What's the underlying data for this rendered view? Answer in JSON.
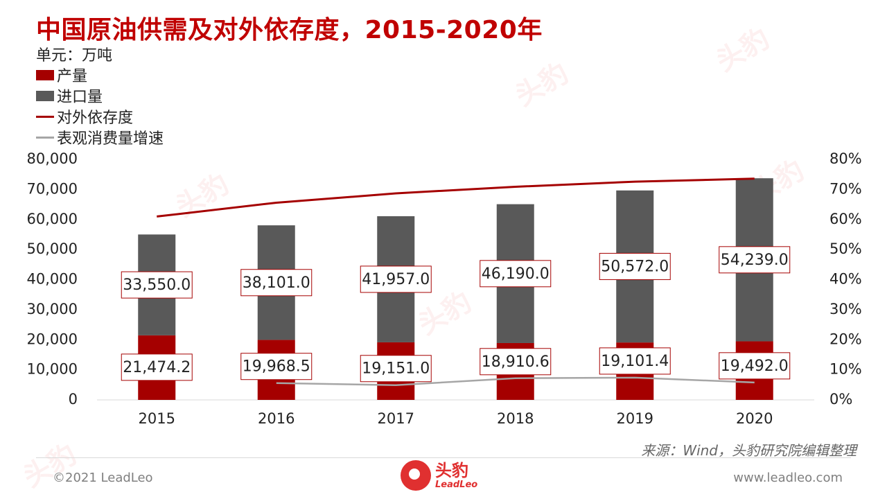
{
  "title": "中国原油供需及对外依存度，2015-2020年",
  "unit": "单元：万吨",
  "legend": [
    {
      "label": "产量",
      "kind": "box",
      "color": "#a50000"
    },
    {
      "label": "进口量",
      "kind": "box",
      "color": "#595959"
    },
    {
      "label": "对外依存度",
      "kind": "line",
      "color": "#a50000"
    },
    {
      "label": "表观消费量增速",
      "kind": "line",
      "color": "#a6a6a6"
    }
  ],
  "source": "来源：Wind，头豹研究院编辑整理",
  "footer": {
    "copyright": "©2021 LeadLeo",
    "website": "www.leadleo.com",
    "logo_cn": "头豹",
    "logo_en": "LeadLeo"
  },
  "colors": {
    "title": "#c00000",
    "production": "#a50000",
    "imports": "#595959",
    "dependency": "#a50000",
    "growth": "#a6a6a6"
  },
  "chart_data": {
    "type": "bar",
    "stacked": true,
    "categories": [
      "2015",
      "2016",
      "2017",
      "2018",
      "2019",
      "2020"
    ],
    "series": [
      {
        "name": "产量",
        "axis": "left",
        "type": "bar",
        "values": [
          21474.2,
          19968.5,
          19151.0,
          18910.6,
          19101.4,
          19492.0
        ],
        "labels": [
          "21,474.2",
          "19,968.5",
          "19,151.0",
          "18,910.6",
          "19,101.4",
          "19,492.0"
        ]
      },
      {
        "name": "进口量",
        "axis": "left",
        "type": "bar",
        "values": [
          33550.0,
          38101.0,
          41957.0,
          46190.0,
          50572.0,
          54239.0
        ],
        "labels": [
          "33,550.0",
          "38,101.0",
          "41,957.0",
          "46,190.0",
          "50,572.0",
          "54,239.0"
        ]
      },
      {
        "name": "对外依存度",
        "axis": "right",
        "type": "line",
        "values": [
          0.61,
          0.656,
          0.687,
          0.709,
          0.726,
          0.736
        ]
      },
      {
        "name": "表观消费量增速",
        "axis": "right",
        "type": "line",
        "values": [
          null,
          0.056,
          0.049,
          0.072,
          0.074,
          0.058
        ]
      }
    ],
    "y_left": {
      "min": 0,
      "max": 80000,
      "step": 10000,
      "ticks": [
        "0",
        "10,000",
        "20,000",
        "30,000",
        "40,000",
        "50,000",
        "60,000",
        "70,000",
        "80,000"
      ]
    },
    "y_right": {
      "min": 0,
      "max": 0.8,
      "step": 0.1,
      "ticks": [
        "0%",
        "10%",
        "20%",
        "30%",
        "40%",
        "50%",
        "60%",
        "70%",
        "80%"
      ]
    },
    "grid": false,
    "legend_position": "top-left"
  }
}
